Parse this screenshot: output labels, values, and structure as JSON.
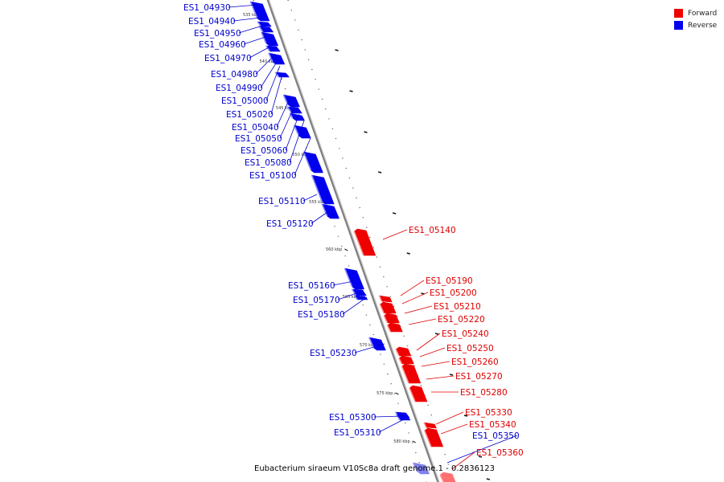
{
  "colors": {
    "forward": "#ee0000",
    "reverse": "#0000ee",
    "forward_label": "#dd0000",
    "reverse_label": "#0000cc"
  },
  "legend": [
    {
      "label": "Forward",
      "color": "#ee0000"
    },
    {
      "label": "Reverse",
      "color": "#0000ee"
    }
  ],
  "caption": "Eubacterium siraeum V10Sc8a draft genome.1 - 0.2836123",
  "scale": {
    "unit": "kbp",
    "ticks": [
      535,
      540,
      545,
      550,
      555,
      560,
      565,
      570,
      575,
      580
    ]
  },
  "genes": [
    {
      "id": "ES1_04930",
      "strand": "reverse"
    },
    {
      "id": "ES1_04940",
      "strand": "reverse"
    },
    {
      "id": "ES1_04950",
      "strand": "reverse"
    },
    {
      "id": "ES1_04960",
      "strand": "reverse"
    },
    {
      "id": "ES1_04970",
      "strand": "reverse"
    },
    {
      "id": "ES1_04980",
      "strand": "reverse"
    },
    {
      "id": "ES1_04990",
      "strand": "reverse"
    },
    {
      "id": "ES1_05000",
      "strand": "reverse"
    },
    {
      "id": "ES1_05020",
      "strand": "reverse"
    },
    {
      "id": "ES1_05040",
      "strand": "reverse"
    },
    {
      "id": "ES1_05050",
      "strand": "reverse"
    },
    {
      "id": "ES1_05060",
      "strand": "reverse"
    },
    {
      "id": "ES1_05080",
      "strand": "reverse"
    },
    {
      "id": "ES1_05100",
      "strand": "reverse"
    },
    {
      "id": "ES1_05110",
      "strand": "reverse"
    },
    {
      "id": "ES1_05120",
      "strand": "reverse"
    },
    {
      "id": "ES1_05140",
      "strand": "forward"
    },
    {
      "id": "ES1_05160",
      "strand": "reverse"
    },
    {
      "id": "ES1_05170",
      "strand": "reverse"
    },
    {
      "id": "ES1_05180",
      "strand": "reverse"
    },
    {
      "id": "ES1_05190",
      "strand": "forward"
    },
    {
      "id": "ES1_05200",
      "strand": "forward"
    },
    {
      "id": "ES1_05210",
      "strand": "forward"
    },
    {
      "id": "ES1_05220",
      "strand": "forward"
    },
    {
      "id": "ES1_05230",
      "strand": "reverse"
    },
    {
      "id": "ES1_05240",
      "strand": "forward"
    },
    {
      "id": "ES1_05250",
      "strand": "forward"
    },
    {
      "id": "ES1_05260",
      "strand": "forward"
    },
    {
      "id": "ES1_05270",
      "strand": "forward"
    },
    {
      "id": "ES1_05280",
      "strand": "forward"
    },
    {
      "id": "ES1_05300",
      "strand": "reverse"
    },
    {
      "id": "ES1_05310",
      "strand": "reverse"
    },
    {
      "id": "ES1_05330",
      "strand": "forward"
    },
    {
      "id": "ES1_05340",
      "strand": "forward"
    },
    {
      "id": "ES1_05350",
      "strand": "reverse"
    },
    {
      "id": "ES1_05360",
      "strand": "forward"
    }
  ]
}
